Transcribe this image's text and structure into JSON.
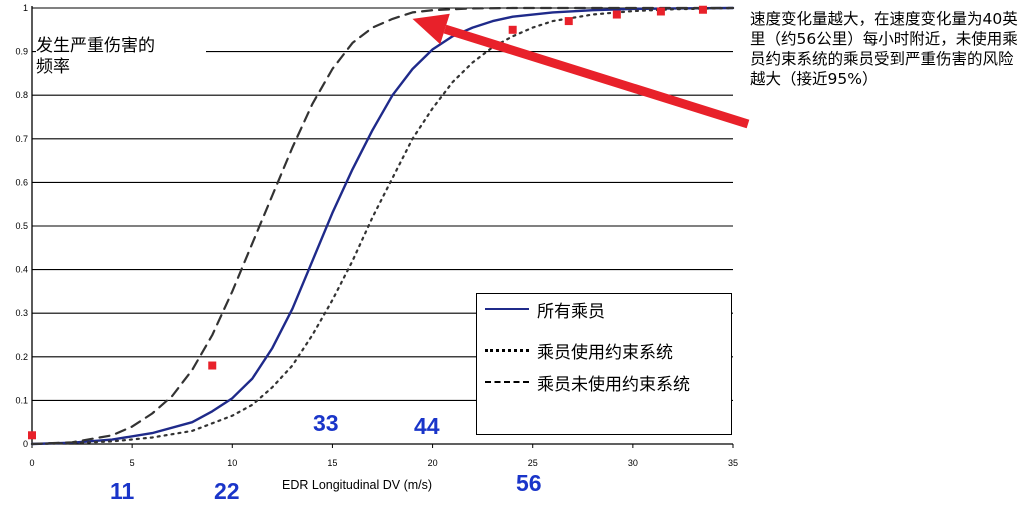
{
  "chart_data": {
    "type": "line",
    "title": "",
    "xlabel": "EDR Longitudinal DV (m/s)",
    "ylabel": "发生严重伤害的\n频率",
    "xlim": [
      0,
      35
    ],
    "ylim": [
      0,
      1
    ],
    "x_ticks": [
      "0",
      "5",
      "10",
      "15",
      "20",
      "25",
      "30",
      "35"
    ],
    "y_ticks": [
      "0",
      "0.1",
      "0.2",
      "0.3",
      "0.4",
      "0.5",
      "0.6",
      "0.7",
      "0.8",
      "0.9",
      "1"
    ],
    "grid": "horizontal",
    "legend_position": "bottom-right",
    "series": [
      {
        "name": "所有乘员",
        "style": "solid",
        "color": "#1f2a8a",
        "x": [
          0,
          2,
          4,
          6,
          8,
          9,
          10,
          11,
          12,
          13,
          14,
          15,
          16,
          17,
          18,
          19,
          20,
          21,
          22,
          23,
          24,
          26,
          28,
          30,
          32,
          35
        ],
        "y": [
          0,
          0.003,
          0.01,
          0.025,
          0.05,
          0.075,
          0.105,
          0.15,
          0.22,
          0.31,
          0.42,
          0.53,
          0.63,
          0.72,
          0.8,
          0.86,
          0.905,
          0.935,
          0.955,
          0.97,
          0.98,
          0.99,
          0.995,
          0.998,
          0.999,
          1.0
        ]
      },
      {
        "name": "乘员使用约束系统",
        "style": "dotted",
        "color": "#333333",
        "x": [
          0,
          2,
          4,
          6,
          8,
          10,
          11,
          12,
          13,
          14,
          15,
          16,
          17,
          18,
          19,
          20,
          21,
          22,
          23,
          24,
          25,
          26,
          28,
          30,
          32,
          35
        ],
        "y": [
          0,
          0.002,
          0.006,
          0.015,
          0.03,
          0.065,
          0.09,
          0.13,
          0.18,
          0.25,
          0.33,
          0.42,
          0.52,
          0.61,
          0.7,
          0.77,
          0.83,
          0.875,
          0.91,
          0.935,
          0.955,
          0.97,
          0.985,
          0.993,
          0.997,
          1.0
        ]
      },
      {
        "name": "乘员未使用约束系统",
        "style": "dashed",
        "color": "#333333",
        "x": [
          0,
          2,
          4,
          5,
          6,
          7,
          8,
          9,
          10,
          11,
          12,
          13,
          14,
          15,
          16,
          17,
          18,
          19,
          20,
          22,
          24,
          26,
          30,
          35
        ],
        "y": [
          0,
          0.004,
          0.02,
          0.04,
          0.07,
          0.11,
          0.17,
          0.25,
          0.35,
          0.46,
          0.57,
          0.68,
          0.78,
          0.86,
          0.92,
          0.955,
          0.975,
          0.99,
          0.995,
          0.999,
          1.0,
          1.0,
          1.0,
          1.0
        ]
      },
      {
        "name": "",
        "style": "markers",
        "color": "#e8212a",
        "x": [
          0,
          9,
          24,
          26.8,
          29.2,
          31.4,
          33.5
        ],
        "y": [
          0.02,
          0.18,
          0.95,
          0.97,
          0.985,
          0.992,
          0.996
        ]
      }
    ],
    "kmh_labels": [
      {
        "text": "11",
        "row": "bottom"
      },
      {
        "text": "22",
        "row": "bottom"
      },
      {
        "text": "33",
        "row": "top"
      },
      {
        "text": "44",
        "row": "top"
      },
      {
        "text": "56",
        "row": "bottom"
      }
    ],
    "annotation": "速度变化量越大，在速度变化量为40英里（约56公里）每小时附近，未使用乘员约束系统的乘员受到严重伤害的风险越大（接近95%）",
    "arrow_color": "#e8212a",
    "accent_blue": "#1a35c9"
  }
}
